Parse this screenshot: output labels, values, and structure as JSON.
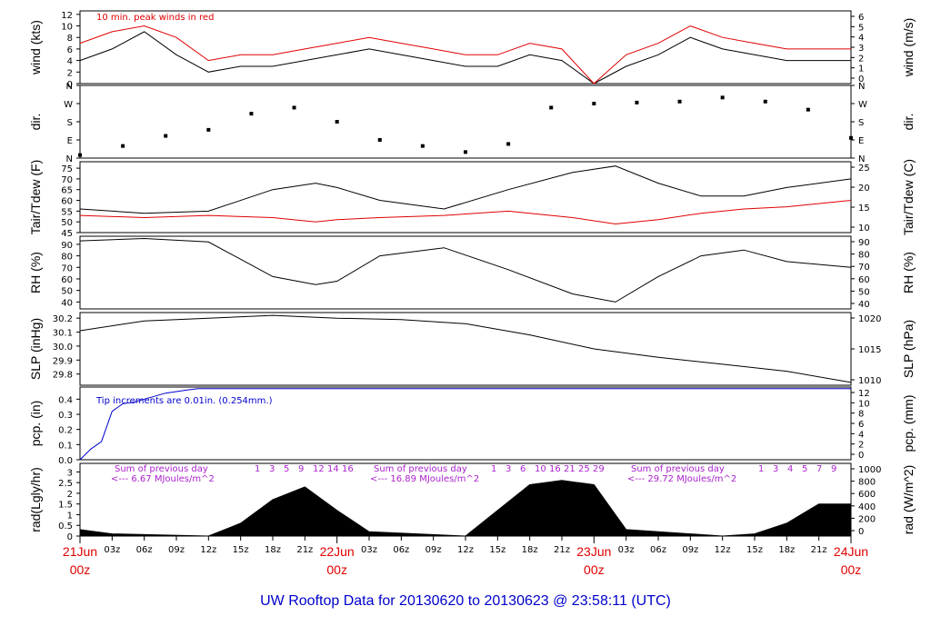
{
  "title": "UW Rooftop Data for 20130620  to  20130623 @ 23:58:11  (UTC)",
  "colors": {
    "red": "#e00000",
    "blue": "#0000cc",
    "purple": "#aa22cc",
    "black": "#000000"
  },
  "time_axis": {
    "hour_ticks": [
      "03z",
      "06z",
      "09z",
      "12z",
      "15z",
      "18z",
      "21z"
    ],
    "day_labels": [
      {
        "date": "21Jun",
        "hour": "00z"
      },
      {
        "date": "22Jun",
        "hour": "00z"
      },
      {
        "date": "23Jun",
        "hour": "00z"
      },
      {
        "date": "24Jun",
        "hour": "00z"
      }
    ]
  },
  "annotations": {
    "wind_note": "10 min. peak winds in red",
    "pcp_note": "Tip increments are 0.01in. (0.254mm.)",
    "rad_days": [
      {
        "line1": "Sum of previous day",
        "line2": "<--- 6.67 MJoules/m^2",
        "hours": [
          "1",
          "3",
          "5",
          "9",
          "12",
          "14",
          "16"
        ]
      },
      {
        "line1": "Sum of previous day",
        "line2": "<--- 16.89 MJoules/m^2",
        "hours": [
          "1",
          "3",
          "6",
          "10",
          "16",
          "21",
          "25",
          "29"
        ]
      },
      {
        "line1": "Sum of previous day",
        "line2": "<--- 29.72 MJoules/m^2",
        "hours": [
          "1",
          "3",
          "4",
          "5",
          "7",
          "9"
        ]
      }
    ]
  },
  "chart_data": [
    {
      "type": "line",
      "panel": "wind",
      "ylabel_left": "wind (kts)",
      "ylabel_right": "wind (m/s)",
      "ylim": [
        0,
        12.6
      ],
      "yticks": [
        0,
        2,
        4,
        6,
        8,
        10,
        12
      ],
      "right_ticks": [
        "0",
        "1",
        "2",
        "3",
        "4",
        "5",
        "6"
      ],
      "series": [
        {
          "name": "wind speed",
          "color": "#000000",
          "x": [
            0,
            3,
            6,
            9,
            12,
            15,
            18,
            21,
            24,
            27,
            30,
            33,
            36,
            39,
            42,
            45,
            48,
            51,
            54,
            57,
            60,
            63,
            66,
            69,
            72
          ],
          "values": [
            4,
            6,
            9,
            5,
            2,
            3,
            3,
            4,
            5,
            6,
            5,
            4,
            3,
            3,
            5,
            4,
            0,
            3,
            5,
            8,
            6,
            5,
            4,
            4,
            4
          ]
        },
        {
          "name": "10 min. peak winds",
          "color": "#e00000",
          "x": [
            0,
            3,
            6,
            9,
            12,
            15,
            18,
            21,
            24,
            27,
            30,
            33,
            36,
            39,
            42,
            45,
            48,
            51,
            54,
            57,
            60,
            63,
            66,
            69,
            72
          ],
          "values": [
            7,
            9,
            10,
            8,
            4,
            5,
            5,
            6,
            7,
            8,
            7,
            6,
            5,
            5,
            7,
            6,
            0,
            5,
            7,
            10,
            8,
            7,
            6,
            6,
            6
          ]
        }
      ]
    },
    {
      "type": "scatter",
      "panel": "dir",
      "ylabel_left": "dir.",
      "ylabel_right": "dir.",
      "ylim": [
        0,
        360
      ],
      "tick_labels": [
        "N",
        "E",
        "S",
        "W",
        "N"
      ],
      "series": [
        {
          "name": "wind direction",
          "x": [
            0,
            4,
            8,
            12,
            16,
            20,
            24,
            28,
            32,
            36,
            40,
            44,
            48,
            52,
            56,
            60,
            64,
            68,
            72
          ],
          "values": [
            15,
            60,
            110,
            140,
            220,
            250,
            180,
            90,
            60,
            30,
            70,
            250,
            270,
            275,
            280,
            300,
            280,
            240,
            100
          ]
        }
      ]
    },
    {
      "type": "line",
      "panel": "temp",
      "ylabel_left": "Tair/Tdew (F)",
      "ylabel_right": "Tair/Tdew (C)",
      "ylim": [
        45,
        78
      ],
      "yticks": [
        45,
        50,
        55,
        60,
        65,
        70,
        75
      ],
      "right_ticks": [
        "10",
        "15",
        "20",
        "25"
      ],
      "series": [
        {
          "name": "Tair",
          "color": "#000000",
          "x": [
            0,
            6,
            12,
            18,
            22,
            24,
            28,
            34,
            40,
            46,
            50,
            54,
            58,
            62,
            66,
            72
          ],
          "values": [
            56,
            54,
            55,
            65,
            68,
            66,
            60,
            56,
            65,
            73,
            76,
            68,
            62,
            62,
            66,
            70
          ]
        },
        {
          "name": "Tdew",
          "color": "#e00000",
          "x": [
            0,
            6,
            12,
            18,
            22,
            24,
            28,
            34,
            40,
            46,
            50,
            54,
            58,
            62,
            66,
            72
          ],
          "values": [
            53,
            52,
            53,
            52,
            50,
            51,
            52,
            53,
            55,
            52,
            49,
            51,
            54,
            56,
            57,
            60
          ]
        }
      ]
    },
    {
      "type": "line",
      "panel": "rh",
      "ylabel_left": "RH (%)",
      "ylabel_right": "RH (%)",
      "ylim": [
        34,
        97
      ],
      "yticks": [
        40,
        50,
        60,
        70,
        80,
        90
      ],
      "series": [
        {
          "name": "RH",
          "color": "#000000",
          "x": [
            0,
            6,
            12,
            18,
            22,
            24,
            28,
            34,
            40,
            46,
            50,
            54,
            58,
            62,
            66,
            72
          ],
          "values": [
            93,
            95,
            92,
            62,
            55,
            58,
            80,
            87,
            68,
            47,
            40,
            62,
            80,
            85,
            75,
            70
          ]
        }
      ]
    },
    {
      "type": "line",
      "panel": "slp",
      "ylabel_left": "SLP (inHg)",
      "ylabel_right": "SLP (hPa)",
      "ylim": [
        29.72,
        30.24
      ],
      "yticks": [
        29.8,
        29.9,
        30.0,
        30.1,
        30.2
      ],
      "right_ticks": [
        "1010",
        "1015",
        "1020"
      ],
      "series": [
        {
          "name": "SLP",
          "color": "#000000",
          "x": [
            0,
            6,
            12,
            18,
            24,
            30,
            36,
            42,
            48,
            54,
            60,
            66,
            72
          ],
          "values": [
            30.11,
            30.18,
            30.2,
            30.22,
            30.2,
            30.19,
            30.16,
            30.08,
            29.98,
            29.92,
            29.87,
            29.82,
            29.74
          ]
        }
      ]
    },
    {
      "type": "line",
      "panel": "pcp",
      "ylabel_left": "pcp. (in)",
      "ylabel_right": "pcp. (mm)",
      "ylim": [
        0,
        0.48
      ],
      "yticks": [
        0.0,
        0.1,
        0.2,
        0.3,
        0.4
      ],
      "right_ticks": [
        "0",
        "2",
        "4",
        "6",
        "8",
        "10",
        "12"
      ],
      "series": [
        {
          "name": "precipitation",
          "color": "#0000cc",
          "x": [
            0,
            1,
            2,
            3,
            4,
            5,
            6,
            8,
            10,
            11,
            72
          ],
          "values": [
            0,
            0.07,
            0.12,
            0.32,
            0.37,
            0.38,
            0.4,
            0.44,
            0.46,
            0.47,
            0.47
          ]
        }
      ]
    },
    {
      "type": "area",
      "panel": "rad",
      "ylabel_left": "rad(Lgly/hr)",
      "ylabel_right": "rad (W/m^2)",
      "ylim": [
        0,
        3.4
      ],
      "yticks": [
        0,
        0.5,
        1,
        1.5,
        2,
        2.5,
        3
      ],
      "right_ticks": [
        "0",
        "200",
        "400",
        "600",
        "800",
        "1000"
      ],
      "series": [
        {
          "name": "solar radiation",
          "color": "#000000",
          "x": [
            0,
            3,
            12,
            15,
            18,
            21,
            24,
            27,
            36,
            39,
            42,
            45,
            48,
            51,
            60,
            63,
            66,
            69,
            72
          ],
          "values": [
            0.3,
            0.1,
            0,
            0.6,
            1.7,
            2.3,
            1.2,
            0.2,
            0,
            1.2,
            2.4,
            2.6,
            2.4,
            0.3,
            0,
            0.1,
            0.6,
            1.5,
            1.5
          ]
        }
      ]
    }
  ]
}
